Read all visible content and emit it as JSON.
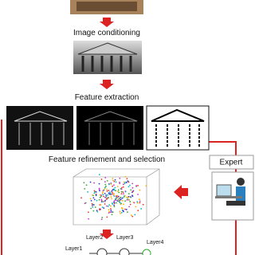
{
  "steps": [
    "Image conditioning",
    "Feature extraction",
    "Feature refinement and selection"
  ],
  "expert": "Expert",
  "layers": [
    "Layer1",
    "Layer2",
    "Layer3",
    "Layer4"
  ]
}
